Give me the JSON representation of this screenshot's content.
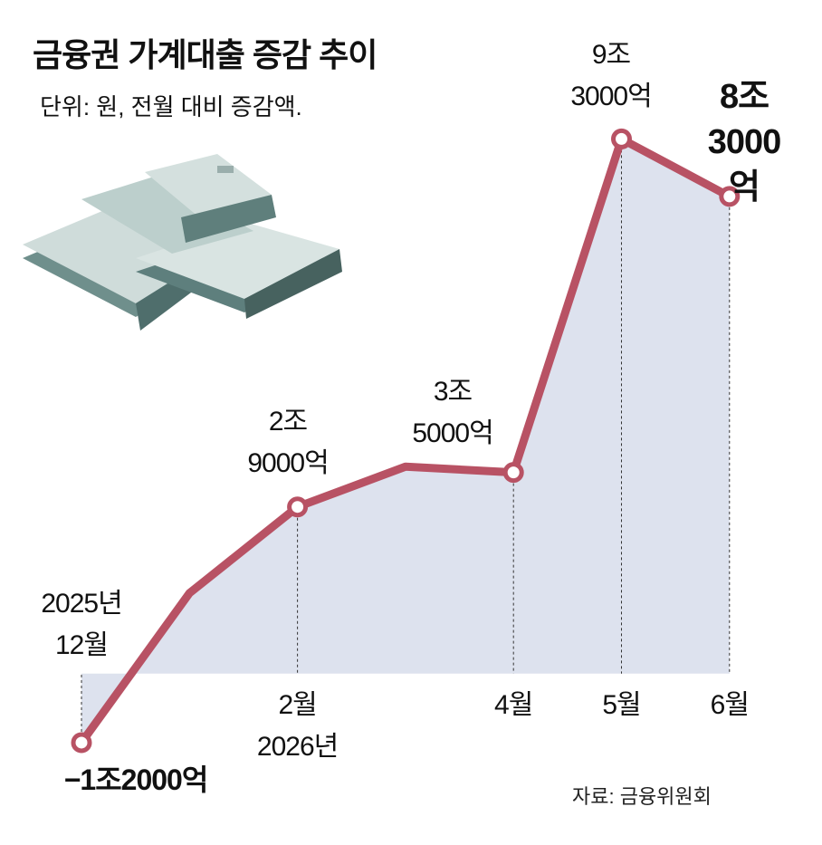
{
  "chart_data": {
    "type": "line",
    "title": "금융권 가계대출 증감 추이",
    "subtitle": "단위: 원, 전월 대비 증감액.",
    "source": "자료: 금융위원회",
    "categories": [
      "2025년\n12월",
      null,
      "2월\n2026년",
      null,
      "4월",
      "5월",
      "6월"
    ],
    "values": [
      -12000,
      14000,
      29000,
      36000,
      35000,
      93000,
      83000
    ],
    "value_labels": [
      "−1조2000억",
      null,
      "2조\n9000억",
      null,
      "3조\n5000억",
      "9조\n3000억",
      "8조\n3000억"
    ],
    "color": "#b85264",
    "fill_color": "#dde2ee",
    "ylim": [
      -15000,
      100000
    ]
  }
}
